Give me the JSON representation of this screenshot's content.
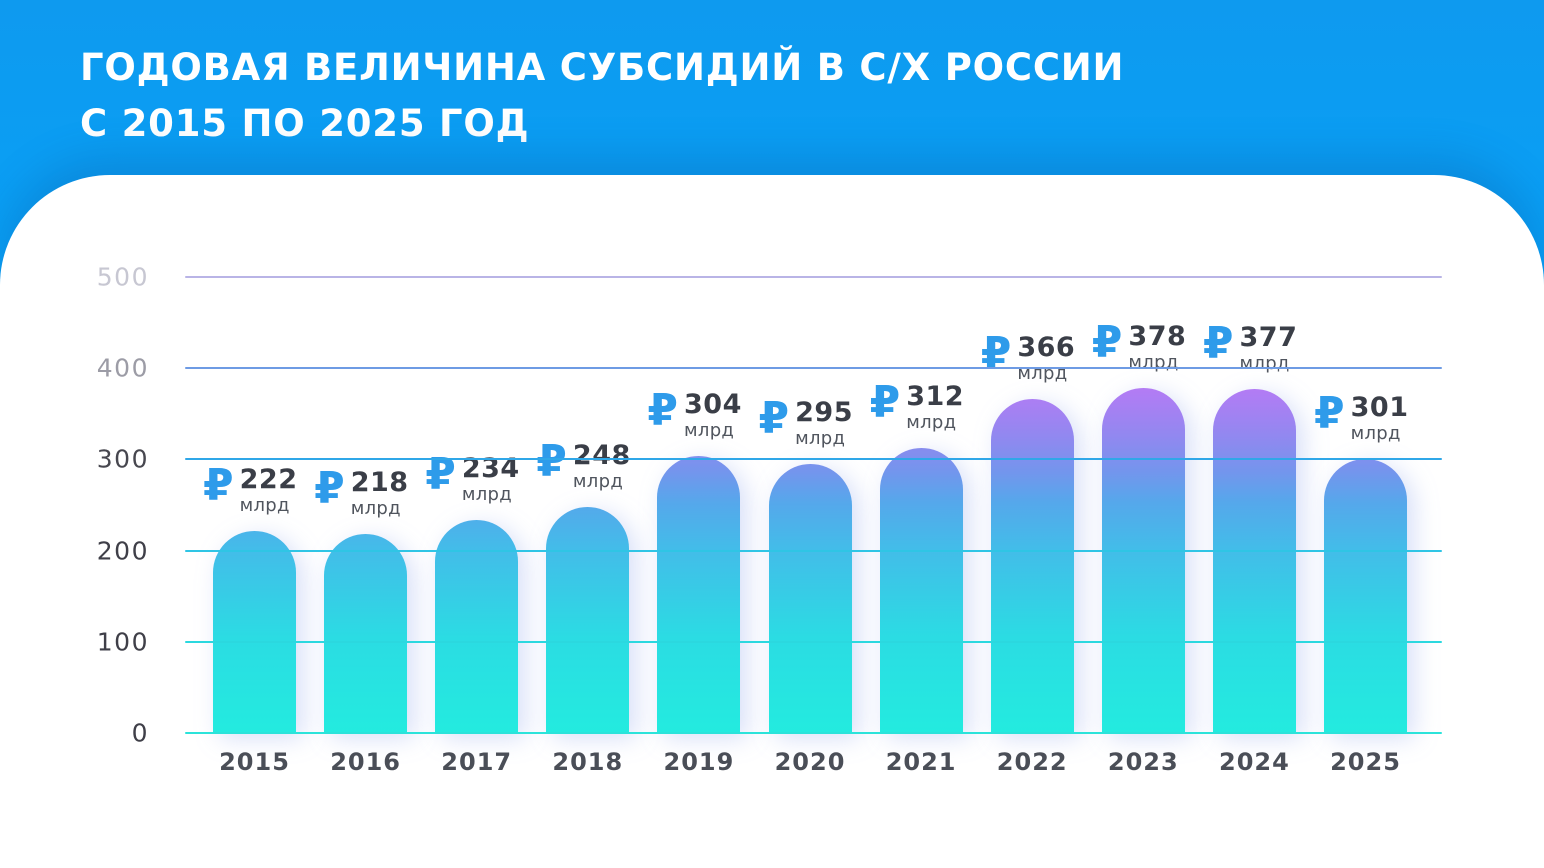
{
  "header": {
    "title_line1": "ГОДОВАЯ ВЕЛИЧИНА СУБСИДИЙ В С/Х РОССИИ",
    "title_line2": "С 2015 ПО 2025 ГОД"
  },
  "colors": {
    "background_blue": "#0A9DF3",
    "card_background": "#FFFFFF",
    "title_text": "#FFFFFF",
    "ruble_sign": "#2E9BEA",
    "value_number": "#3A3E47",
    "value_unit": "#50555E",
    "year_label": "#4A4E57",
    "bar_gradient_bottom": "#23EBDF",
    "bar_gradient_mid": "#48B9E9",
    "bar_gradient_top": "#B77AF5"
  },
  "chart_data": {
    "type": "bar",
    "title": "Годовая величина субсидий в с/х России с 2015 по 2025 год",
    "categories": [
      "2015",
      "2016",
      "2017",
      "2018",
      "2019",
      "2020",
      "2021",
      "2022",
      "2023",
      "2024",
      "2025"
    ],
    "values": [
      222,
      218,
      234,
      248,
      304,
      295,
      312,
      366,
      378,
      377,
      301
    ],
    "currency_symbol": "₽",
    "unit": "млрд",
    "xlabel": "",
    "ylabel": "",
    "ylim": [
      0,
      500
    ],
    "grid": true,
    "legend": false,
    "y_ticks": [
      {
        "label": "500",
        "value": 500,
        "label_color": "#C7C7D2",
        "line_color": "#B9B4E6"
      },
      {
        "label": "400",
        "value": 400,
        "label_color": "#9C9CA6",
        "line_color": "#6E9BE4"
      },
      {
        "label": "300",
        "value": 300,
        "label_color": "#47474F",
        "line_color": "#2FA7E8"
      },
      {
        "label": "200",
        "value": 200,
        "label_color": "#3F3F48",
        "line_color": "#2FC5E5"
      },
      {
        "label": "100",
        "value": 100,
        "label_color": "#3F3F48",
        "line_color": "#2BD8DF"
      },
      {
        "label": "0",
        "value": 0,
        "label_color": "#3F3F48",
        "line_color": "#2BE3DA"
      }
    ]
  }
}
